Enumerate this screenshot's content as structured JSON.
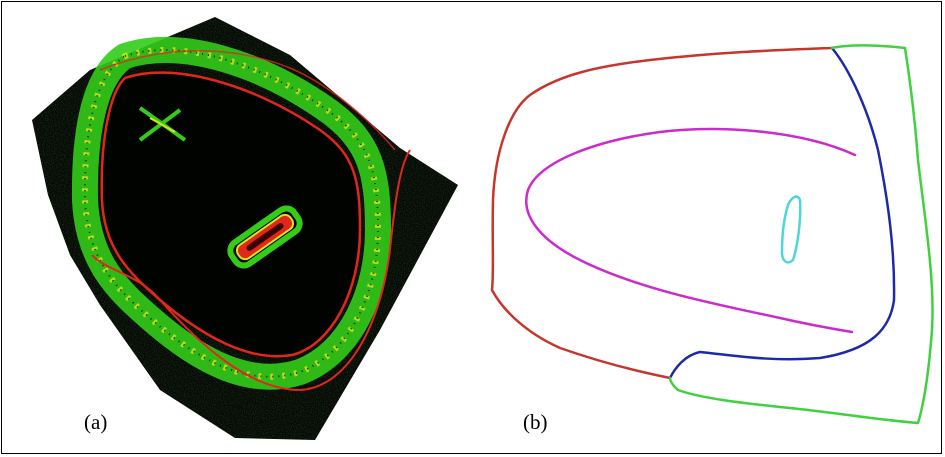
{
  "figure": {
    "panel_a": {
      "caption": "(a)",
      "colors": {
        "background": "#050805",
        "region": "#010301",
        "edge_green": "#33cc1a",
        "edge_yellow": "#d6e51f",
        "contour_red": "#e3261c"
      }
    },
    "panel_b": {
      "caption": "(b)",
      "colors": {
        "outer_left": "#c5362c",
        "outer_right": "#1c2aa8",
        "outer_bottom": "#3fd13f",
        "inner_curve": "#cc2bcc",
        "small_loop": "#4fd6d6"
      }
    }
  }
}
